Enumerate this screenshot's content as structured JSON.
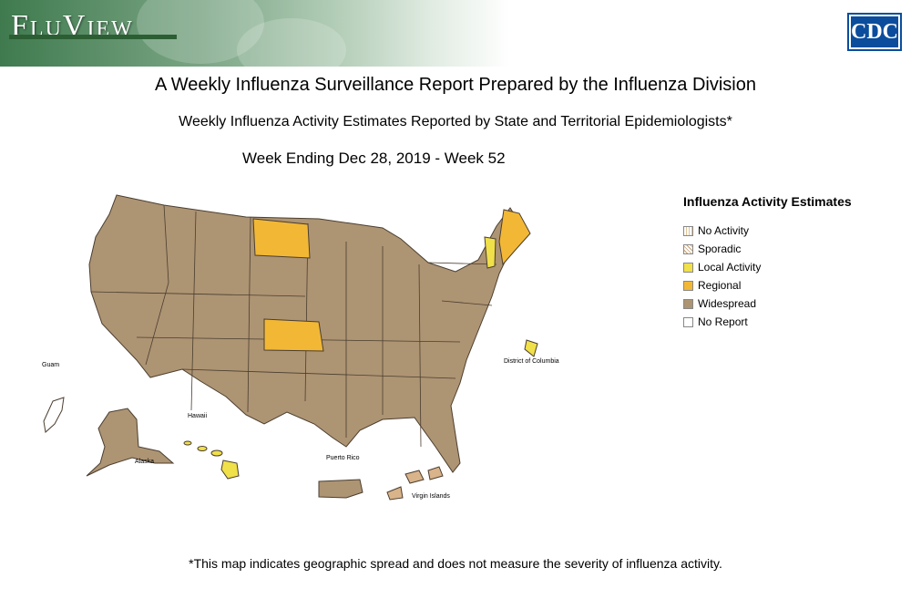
{
  "header": {
    "brand": "FluView",
    "logo_text": "CDC"
  },
  "titles": {
    "main": "A Weekly Influenza Surveillance Report Prepared by the Influenza Division",
    "sub": "Weekly Influenza Activity Estimates Reported by State and Territorial Epidemiologists*",
    "week": "Week Ending Dec 28, 2019 - Week 52"
  },
  "map": {
    "territory_labels": {
      "guam": "Guam",
      "hawaii": "Hawaii",
      "alaska": "Alaska",
      "puerto_rico": "Puerto Rico",
      "dc": "District of Columbia",
      "virgin_islands": "Virgin Islands"
    },
    "activity_by_region": {
      "Widespread": "all other contiguous states, Alaska, Puerto Rico",
      "Regional": [
        "North Dakota",
        "Kansas",
        "Maine"
      ],
      "Local Activity": [
        "Vermont",
        "Hawaii",
        "District of Columbia"
      ],
      "Sporadic": [
        "Virgin Islands"
      ],
      "No Report": [
        "Guam"
      ]
    }
  },
  "legend": {
    "title": "Influenza Activity Estimates",
    "items": [
      {
        "label": "No Activity",
        "color": "#ffffff"
      },
      {
        "label": "Sporadic",
        "color": "#d9b38a"
      },
      {
        "label": "Local Activity",
        "color": "#f0e04a"
      },
      {
        "label": "Regional",
        "color": "#f2b835"
      },
      {
        "label": "Widespread",
        "color": "#ad9473"
      },
      {
        "label": "No Report",
        "color": "#ffffff"
      }
    ]
  },
  "footnote": "*This map indicates geographic spread and does not measure the severity of influenza activity."
}
